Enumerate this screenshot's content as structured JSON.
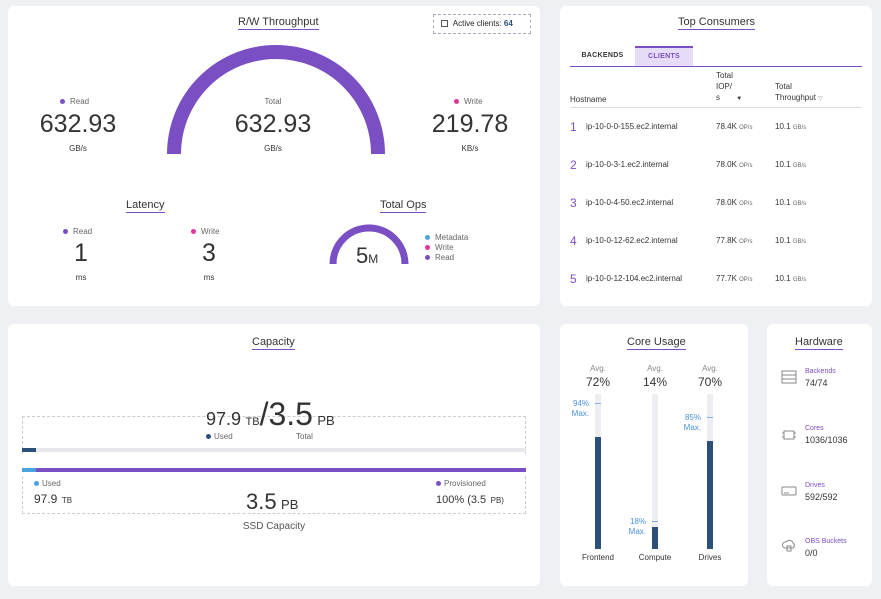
{
  "throughput": {
    "title": "R/W Throughput",
    "active_clients_label": "Active clients:",
    "active_clients_value": "64",
    "read_label": "Read",
    "read_value": "632.93",
    "read_unit": "GB/s",
    "total_label": "Total",
    "total_value": "632.93",
    "total_unit": "GB/s",
    "write_label": "Write",
    "write_value": "219.78",
    "write_unit": "KB/s"
  },
  "latency": {
    "title": "Latency",
    "read_label": "Read",
    "read_value": "1",
    "read_unit": "ms",
    "write_label": "Write",
    "write_value": "3",
    "write_unit": "ms"
  },
  "total_ops": {
    "title": "Total Ops",
    "value": "5",
    "unit": "M",
    "legend": [
      "Metadata",
      "Write",
      "Read"
    ]
  },
  "top_consumers": {
    "title": "Top Consumers",
    "tabs": [
      "BACKENDS",
      "CLIENTS"
    ],
    "active_tab": "CLIENTS",
    "col_hostname": "Hostname",
    "col_iops_1": "Total",
    "col_iops_2": "IOP/",
    "col_iops_3": "s",
    "col_iops_sort": "▼",
    "col_thr_1": "Total",
    "col_thr_2": "Throughput",
    "col_thr_sort": "▽",
    "rows": [
      {
        "rank": "1",
        "host": "ip-10-0-0-155.ec2.internal",
        "iops": "78.4K",
        "iops_unit": "OP/s",
        "thr": "10.1",
        "thr_unit": "GB/s"
      },
      {
        "rank": "2",
        "host": "ip-10-0-3-1.ec2.internal",
        "iops": "78.0K",
        "iops_unit": "OP/s",
        "thr": "10.1",
        "thr_unit": "GB/s"
      },
      {
        "rank": "3",
        "host": "ip-10-0-4-50.ec2.internal",
        "iops": "78.0K",
        "iops_unit": "OP/s",
        "thr": "10.1",
        "thr_unit": "GB/s"
      },
      {
        "rank": "4",
        "host": "ip-10-0-12-62.ec2.internal",
        "iops": "77.8K",
        "iops_unit": "OP/s",
        "thr": "10.1",
        "thr_unit": "GB/s"
      },
      {
        "rank": "5",
        "host": "ip-10-0-12-104.ec2.internal",
        "iops": "77.7K",
        "iops_unit": "OP/s",
        "thr": "10.1",
        "thr_unit": "GB/s"
      }
    ]
  },
  "capacity": {
    "title": "Capacity",
    "used_value": "97.9",
    "used_unit": "TB",
    "slash": "/",
    "total_value": "3.5",
    "total_unit": "PB",
    "used_label": "Used",
    "total_label": "Total",
    "used_fraction": 0.028,
    "bottom_used_label": "Used",
    "bottom_used_value": "97.9",
    "bottom_used_unit": "TB",
    "ssd_value": "3.5",
    "ssd_unit": "PB",
    "ssd_label": "SSD Capacity",
    "provisioned_label": "Provisioned",
    "provisioned_value": "100% (3.5",
    "provisioned_unit": "PB)",
    "provisioned_close": ")",
    "provisioned_fraction": 1.0
  },
  "core_usage": {
    "title": "Core Usage",
    "avg_label": "Avg.",
    "max_label": "Max.",
    "bars": [
      {
        "name": "Frontend",
        "avg": "72%",
        "avg_fraction": 0.72,
        "max": "94%",
        "max_fraction": 0.94
      },
      {
        "name": "Compute",
        "avg": "14%",
        "avg_fraction": 0.14,
        "max": "18%",
        "max_fraction": 0.18
      },
      {
        "name": "Drives",
        "avg": "70%",
        "avg_fraction": 0.7,
        "max": "85%",
        "max_fraction": 0.85
      }
    ]
  },
  "hardware": {
    "title": "Hardware",
    "items": [
      {
        "label": "Backends",
        "value": "74/74",
        "icon": "server-icon"
      },
      {
        "label": "Cores",
        "value": "1036/1036",
        "icon": "cpu-icon"
      },
      {
        "label": "Drives",
        "value": "592/592",
        "icon": "drive-icon"
      },
      {
        "label": "OBS Buckets",
        "value": "0/0",
        "icon": "cloud-bucket-icon"
      }
    ]
  },
  "colors": {
    "accent": "#7a4fc4",
    "metadata": "#4aa3df",
    "write": "#e0359b",
    "read": "#7a4fc4",
    "bar_fill": "#2c4f7c",
    "used": "#4aa3df"
  }
}
